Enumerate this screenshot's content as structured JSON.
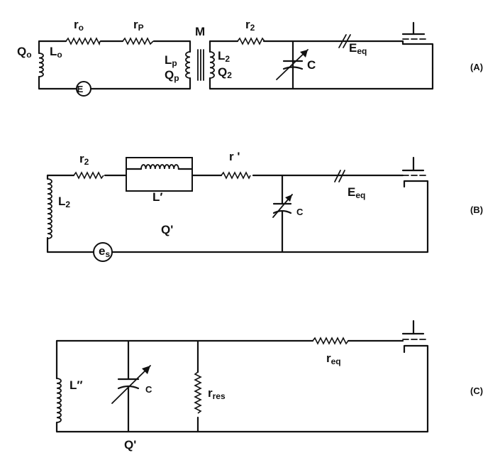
{
  "circuit_a": {
    "tag": "(A)",
    "q0": {
      "main": "Q",
      "sub": "o"
    },
    "l0": {
      "main": "L",
      "sub": "o"
    },
    "r0": {
      "main": "r",
      "sub": "o"
    },
    "rp": {
      "main": "r",
      "sub": "P"
    },
    "m": "M",
    "lp": {
      "main": "L",
      "sub": "p"
    },
    "qp": {
      "main": "Q",
      "sub": "p"
    },
    "l2": {
      "main": "L",
      "sub": "2"
    },
    "q2": {
      "main": "Q",
      "sub": "2"
    },
    "r2": {
      "main": "r",
      "sub": "2"
    },
    "c": "C",
    "eeq": {
      "main": "E",
      "sub": "eq"
    },
    "source": "E"
  },
  "circuit_b": {
    "tag": "(B)",
    "r2": {
      "main": "r",
      "sub": "2"
    },
    "l_prime": "L′",
    "r_prime": "r '",
    "l2": {
      "main": "L",
      "sub": "2"
    },
    "q_prime": "Q'",
    "c": "C",
    "eeq": {
      "main": "E",
      "sub": "eq"
    },
    "es": {
      "main": "e",
      "sub": "s"
    }
  },
  "circuit_c": {
    "tag": "(C)",
    "l_dprime": "L″",
    "c": "C",
    "rres": {
      "main": "r",
      "sub": "res"
    },
    "req": {
      "main": "r",
      "sub": "eq"
    },
    "q_prime": "Q'"
  }
}
